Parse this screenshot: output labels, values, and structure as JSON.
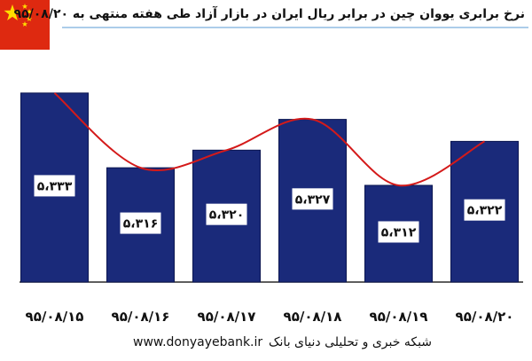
{
  "title": "نرخ برابری یووان چین در برابر ریال ایران در بازار آزاد طی هفته منتهی به ۹۵/۰۸/۲۰",
  "flag_icon": "china-flag-icon",
  "footer": {
    "url": "www.donyayebank.ir",
    "brand": "شبکه خبری و تحلیلی دنیای بانک"
  },
  "colors": {
    "bar_fill": "#1a2a7a",
    "bar_edge": "#0a1550",
    "trend_line": "#d41a1a",
    "flag_red": "#de2910",
    "flag_star": "#ffde00",
    "title_underline": "#5a9bd5"
  },
  "chart_data": {
    "type": "bar",
    "categories": [
      "۹۵/۰۸/۱۵",
      "۹۵/۰۸/۱۶",
      "۹۵/۰۸/۱۷",
      "۹۵/۰۸/۱۸",
      "۹۵/۰۸/۱۹",
      "۹۵/۰۸/۲۰"
    ],
    "values": [
      5333,
      5316,
      5320,
      5327,
      5312,
      5322
    ],
    "data_labels": [
      "۵،۳۳۳",
      "۵،۳۱۶",
      "۵،۳۲۰",
      "۵،۳۲۷",
      "۵،۳۱۲",
      "۵،۳۲۲"
    ],
    "trendline": "smoothed",
    "ylim": [
      5290,
      5336
    ],
    "grid": false,
    "legend": "none",
    "title": "نرخ برابری یووان چین در برابر ریال ایران در بازار آزاد طی هفته منتهی به ۹۵/۰۸/۲۰",
    "xlabel": "",
    "ylabel": ""
  }
}
